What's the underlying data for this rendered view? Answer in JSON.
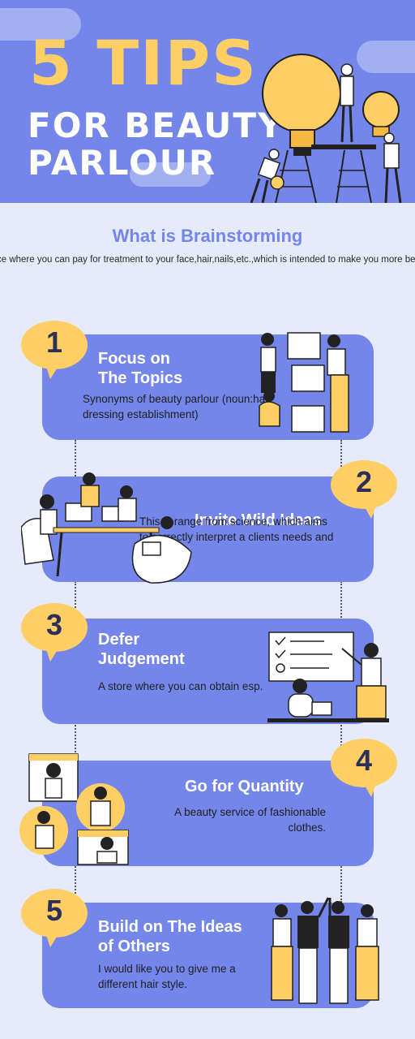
{
  "header": {
    "title_big": "5 TIPS",
    "title_line1": "FOR BEAUTY",
    "title_line2": "PARLOUR"
  },
  "intro": {
    "heading": "What is Brainstorming",
    "description": "ce where you can pay for treatment to your face,hair,nails,etc.,which is intended to make you more beau"
  },
  "tips": [
    {
      "number": "1",
      "title": "Focus on\nThe Topics",
      "description": "Synonyms of beauty parlour (noun:hair dressing establishment)"
    },
    {
      "number": "2",
      "title": "Invite Wild Ideas",
      "description": "This is range from science, which aims to correctly interpret a clients needs and hard."
    },
    {
      "number": "3",
      "title": "Defer\nJudgement",
      "description": "A store where you can obtain esp."
    },
    {
      "number": "4",
      "title": "Go for Quantity",
      "description": "A beauty service of fashionable clothes."
    },
    {
      "number": "5",
      "title": "Build on The Ideas\nof Others",
      "description": "I would like you to give me a different hair style."
    }
  ],
  "colors": {
    "primary": "#7486ea",
    "accent_yellow": "#ffcf66",
    "background": "#e6ebfb",
    "number_text": "#2d2f57"
  }
}
